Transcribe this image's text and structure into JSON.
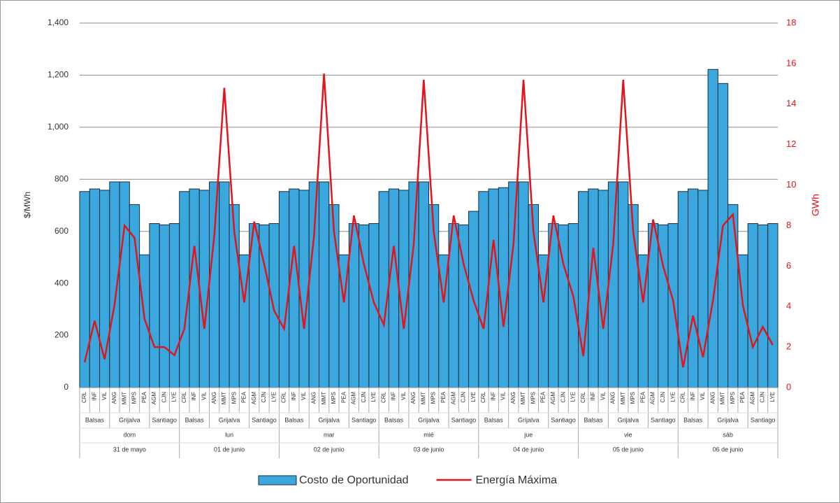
{
  "chart_data": {
    "type": "bar-line",
    "categories": [
      "CRL",
      "INF",
      "VIL",
      "ANG",
      "MMT",
      "MPS",
      "PEA",
      "AGM",
      "CJN",
      "LYE",
      "CRL",
      "INF",
      "VIL",
      "ANG",
      "MMT",
      "MPS",
      "PEA",
      "AGM",
      "CJN",
      "LYE",
      "CRL",
      "INF",
      "VIL",
      "ANG",
      "MMT",
      "MPS",
      "PEA",
      "AGM",
      "CJN",
      "LYE",
      "CRL",
      "INF",
      "VIL",
      "ANG",
      "MMT",
      "MPS",
      "PEA",
      "AGM",
      "CJN",
      "LYE",
      "CRL",
      "INF",
      "VIL",
      "ANG",
      "MMT",
      "MPS",
      "PEA",
      "AGM",
      "CJN",
      "LYE",
      "CRL",
      "INF",
      "VIL",
      "ANG",
      "MMT",
      "MPS",
      "PEA",
      "AGM",
      "CJN",
      "LYE",
      "CRL",
      "INF",
      "VIL",
      "ANG",
      "MMT",
      "MPS",
      "PEA",
      "AGM",
      "CJN",
      "LYE"
    ],
    "basin_labels": [
      "Balsas",
      "Grijalva",
      "Santiago",
      "Balsas",
      "Grijalva",
      "Santiago",
      "Balsas",
      "Grijalva",
      "Santiago",
      "Balsas",
      "Grijalva",
      "Santiago",
      "Balsas",
      "Grijalva",
      "Santiago",
      "Balsas",
      "Grijalva",
      "Santiago",
      "Balsas",
      "Grijalva",
      "Santiago"
    ],
    "day_labels": [
      "dom",
      "lun",
      "mar",
      "mié",
      "jue",
      "vie",
      "sáb"
    ],
    "date_labels": [
      "31 de mayo",
      "01 de junio",
      "02 de junio",
      "03 de junio",
      "04 de junio",
      "05 de junio",
      "06 de junio"
    ],
    "y_label": "$/MWh",
    "y2_label": "GWh",
    "ylim": [
      0,
      1400
    ],
    "yticks": [
      0,
      200,
      400,
      600,
      800,
      {
        "value": 1000,
        "label": "1,000"
      },
      {
        "value": 1200,
        "label": "1,200"
      },
      {
        "value": 1400,
        "label": "1,400"
      }
    ],
    "y2lim": [
      0,
      18
    ],
    "y2ticks": [
      0,
      2,
      4,
      6,
      8,
      10,
      12,
      14,
      16,
      18
    ],
    "grid": true,
    "series": [
      {
        "name": "Costo de Oportunidad",
        "type": "bar",
        "color": "#3aa7df",
        "values": [
          753,
          763,
          758,
          790,
          790,
          703,
          510,
          630,
          625,
          630,
          753,
          763,
          758,
          790,
          790,
          703,
          510,
          630,
          625,
          630,
          753,
          763,
          758,
          790,
          790,
          703,
          510,
          630,
          625,
          630,
          753,
          763,
          758,
          790,
          790,
          703,
          510,
          630,
          625,
          677,
          753,
          763,
          768,
          790,
          790,
          703,
          510,
          630,
          625,
          630,
          753,
          763,
          758,
          790,
          790,
          703,
          510,
          630,
          625,
          630,
          753,
          763,
          758,
          1222,
          1168,
          703,
          510,
          630,
          625,
          630
        ]
      },
      {
        "name": "Energía Máxima",
        "type": "line",
        "axis": "y2",
        "color": "#e3141b",
        "values": [
          1.25,
          3.3,
          1.4,
          4.1,
          8.0,
          7.4,
          3.4,
          2.0,
          2.0,
          1.6,
          2.9,
          7.0,
          2.9,
          7.5,
          14.8,
          7.7,
          4.2,
          8.2,
          6.1,
          3.8,
          2.9,
          7.0,
          2.9,
          7.5,
          15.5,
          7.7,
          4.2,
          8.5,
          6.1,
          4.2,
          3.1,
          7.0,
          2.9,
          7.1,
          15.2,
          7.7,
          4.2,
          8.5,
          6.1,
          4.3,
          2.9,
          7.3,
          3.0,
          7.1,
          15.2,
          7.7,
          4.2,
          8.5,
          6.1,
          4.5,
          1.55,
          6.9,
          2.9,
          7.1,
          15.2,
          7.7,
          4.2,
          8.3,
          6.0,
          4.3,
          1.0,
          3.55,
          1.5,
          4.3,
          8.0,
          8.55,
          4.05,
          2.0,
          3.0,
          2.1
        ]
      }
    ]
  }
}
